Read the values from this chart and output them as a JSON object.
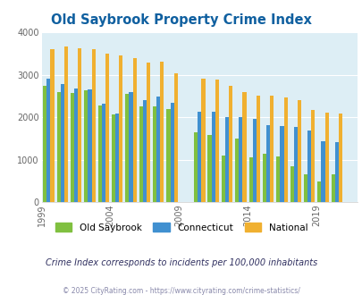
{
  "title": "Old Saybrook Property Crime Index",
  "title_color": "#1060a0",
  "subtitle": "Crime Index corresponds to incidents per 100,000 inhabitants",
  "footer": "© 2025 CityRating.com - https://www.cityrating.com/crime-statistics/",
  "years": [
    2000,
    2001,
    2002,
    2003,
    2004,
    2005,
    2006,
    2007,
    2008,
    2009,
    2011,
    2012,
    2013,
    2014,
    2015,
    2016,
    2017,
    2018,
    2019,
    2020,
    2021
  ],
  "old_saybrook": [
    2750,
    2600,
    2580,
    2640,
    2280,
    2060,
    2560,
    2260,
    2250,
    2200,
    1650,
    1580,
    1090,
    1500,
    1060,
    1140,
    1080,
    850,
    660,
    480,
    660
  ],
  "connecticut": [
    2900,
    2780,
    2670,
    2660,
    2330,
    2080,
    2600,
    2410,
    2490,
    2350,
    2140,
    2130,
    2010,
    2000,
    1960,
    1810,
    1790,
    1780,
    1680,
    1440,
    1420
  ],
  "national": [
    3610,
    3660,
    3620,
    3600,
    3510,
    3450,
    3390,
    3290,
    3320,
    3040,
    2920,
    2890,
    2750,
    2590,
    2510,
    2500,
    2460,
    2410,
    2170,
    2100,
    2080
  ],
  "old_saybrook_color": "#80c040",
  "connecticut_color": "#4090d0",
  "national_color": "#f0b030",
  "bg_color": "#ddeef5",
  "ylim": [
    0,
    4000
  ],
  "yticks": [
    0,
    1000,
    2000,
    3000,
    4000
  ],
  "xtick_years": [
    1999,
    2004,
    2009,
    2014,
    2019
  ],
  "legend_labels": [
    "Old Saybrook",
    "Connecticut",
    "National"
  ],
  "bar_width": 0.27
}
